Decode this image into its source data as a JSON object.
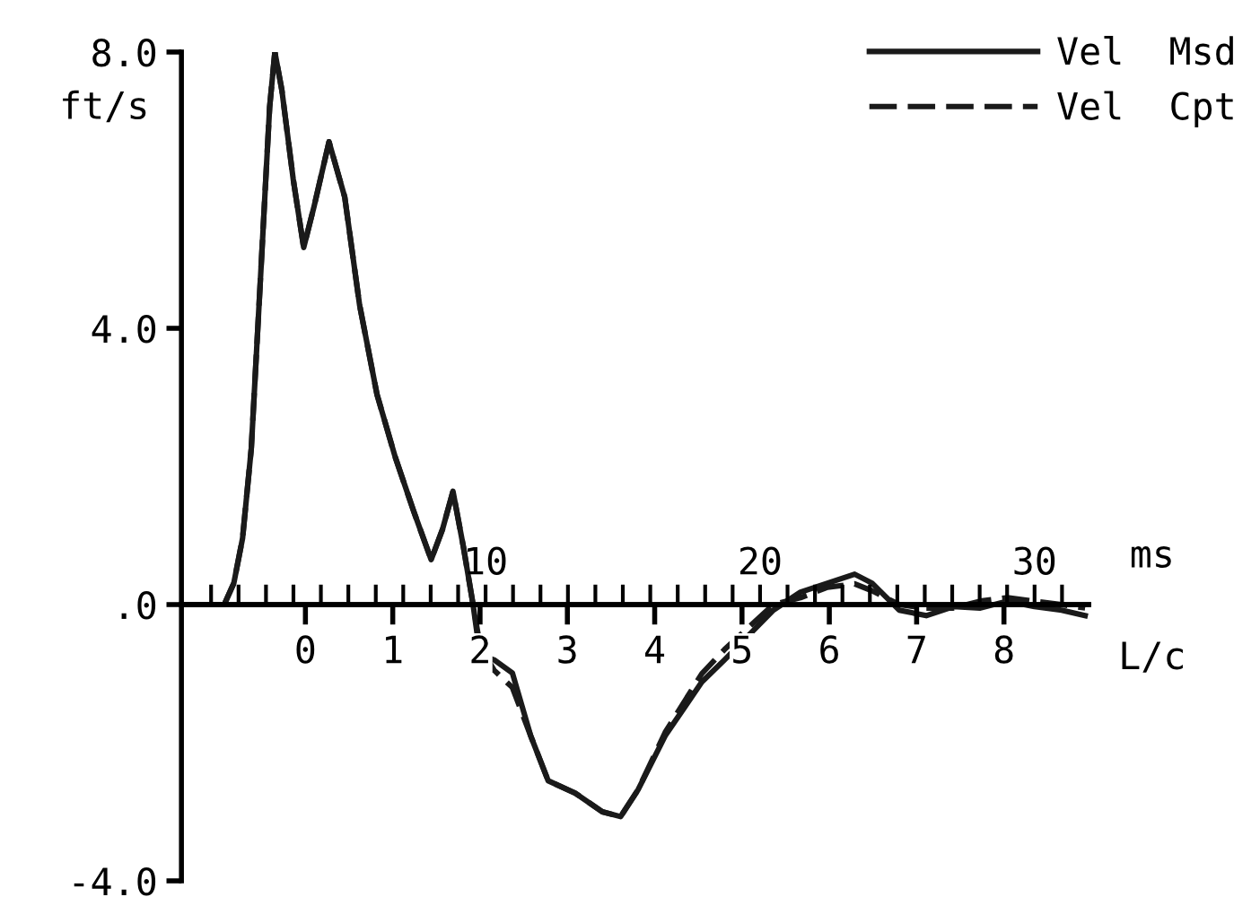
{
  "chart_data": {
    "type": "line",
    "xlabel": "L/c",
    "x2label": "ms",
    "ylabel": "ft/s",
    "x": [
      -1.42,
      -0.93,
      -0.82,
      -0.72,
      -0.62,
      -0.52,
      -0.41,
      -0.35,
      -0.27,
      -0.14,
      -0.02,
      0.1,
      0.27,
      0.45,
      0.62,
      0.82,
      1.03,
      1.24,
      1.44,
      1.57,
      1.69,
      1.81,
      1.92,
      2.0,
      2.16,
      2.37,
      2.58,
      2.78,
      3.09,
      3.4,
      3.61,
      3.81,
      4.12,
      4.54,
      4.8,
      5.36,
      5.67,
      5.98,
      6.29,
      6.49,
      6.8,
      7.11,
      7.42,
      7.73,
      8.04,
      8.35,
      8.66,
      8.93
    ],
    "series": [
      {
        "name": "Vel  Msd",
        "color": "#1a1a1a",
        "line_style": "solid",
        "values": [
          0,
          0,
          0.31,
          0.96,
          2.26,
          4.6,
          7.2,
          8.0,
          7.45,
          6.16,
          5.17,
          5.77,
          6.7,
          5.9,
          4.34,
          3.04,
          2.13,
          1.35,
          0.65,
          1.09,
          1.64,
          0.83,
          0,
          -0.73,
          -0.8,
          -0.99,
          -1.9,
          -2.55,
          -2.73,
          -3.0,
          -3.07,
          -2.68,
          -1.9,
          -1.12,
          -0.8,
          -0.08,
          0.18,
          0.31,
          0.44,
          0.31,
          -0.08,
          -0.16,
          -0.03,
          -0.05,
          0.05,
          -0.03,
          -0.08,
          -0.16
        ]
      },
      {
        "name": "Vel  Cpt",
        "color": "#1a1a1a",
        "line_style": "dashed",
        "values": [
          0,
          0,
          0.31,
          0.96,
          2.26,
          4.6,
          7.2,
          8.0,
          7.45,
          6.16,
          5.17,
          5.77,
          6.7,
          5.9,
          4.34,
          3.04,
          2.13,
          1.35,
          0.65,
          1.09,
          1.64,
          0.83,
          0,
          -0.6,
          -0.95,
          -1.2,
          -1.9,
          -2.55,
          -2.73,
          -3.0,
          -3.07,
          -2.68,
          -1.85,
          -1.0,
          -0.65,
          0.0,
          0.1,
          0.25,
          0.3,
          0.2,
          0.0,
          -0.05,
          -0.05,
          0.05,
          0.1,
          0.05,
          0.0,
          -0.05
        ]
      }
    ],
    "xlim": [
      -1.42,
      8.97
    ],
    "xticks": [
      0,
      1,
      2,
      3,
      4,
      5,
      6,
      7,
      8
    ],
    "x2lim": [
      -1.08,
      31.97
    ],
    "x2ticks": [
      {
        "value": 0,
        "label": null
      },
      {
        "value": 1,
        "label": null
      },
      {
        "value": 2,
        "label": null
      },
      {
        "value": 3,
        "label": null
      },
      {
        "value": 4,
        "label": null
      },
      {
        "value": 5,
        "label": null
      },
      {
        "value": 6,
        "label": null
      },
      {
        "value": 7,
        "label": null
      },
      {
        "value": 8,
        "label": null
      },
      {
        "value": 9,
        "label": null
      },
      10,
      {
        "value": 11,
        "label": null
      },
      {
        "value": 12,
        "label": null
      },
      {
        "value": 13,
        "label": null
      },
      {
        "value": 14,
        "label": null
      },
      {
        "value": 15,
        "label": null
      },
      {
        "value": 16,
        "label": null
      },
      {
        "value": 17,
        "label": null
      },
      {
        "value": 18,
        "label": null
      },
      {
        "value": 19,
        "label": null
      },
      20,
      {
        "value": 21,
        "label": null
      },
      {
        "value": 22,
        "label": null
      },
      {
        "value": 23,
        "label": null
      },
      {
        "value": 24,
        "label": null
      },
      {
        "value": 25,
        "label": null
      },
      {
        "value": 26,
        "label": null
      },
      {
        "value": 27,
        "label": null
      },
      {
        "value": 28,
        "label": null
      },
      {
        "value": 29,
        "label": null
      },
      30,
      {
        "value": 31,
        "label": null
      }
    ],
    "ylim": [
      -4.0,
      8.0
    ],
    "yticks": [
      {
        "value": 8.0,
        "label": "8.0"
      },
      {
        "value": 4.0,
        "label": "4.0"
      },
      {
        "value": 0,
        "label": ".0"
      },
      {
        "value": -4.0,
        "label": "-4.0"
      }
    ],
    "legend": "top right",
    "grid": false
  }
}
